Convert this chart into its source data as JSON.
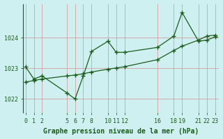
{
  "title": "Graphe pression niveau de la mer (hPa)",
  "bg_color": "#cff0f0",
  "line_color": "#1a5c1a",
  "grid_color_h": "#d4a0a0",
  "grid_color_v": "#d4a0a0",
  "x_ticks": [
    0,
    1,
    2,
    5,
    6,
    7,
    8,
    10,
    11,
    12,
    16,
    18,
    19,
    21,
    22,
    23
  ],
  "x_tick_labels": [
    "0",
    "1",
    "2",
    "5",
    "6",
    "7",
    "8",
    "10",
    "11",
    "12",
    "16",
    "18",
    "19",
    "21",
    "22",
    "23"
  ],
  "y_ticks": [
    1022,
    1023,
    1024
  ],
  "ylim": [
    1021.55,
    1025.1
  ],
  "xlim": [
    -0.3,
    23.5
  ],
  "series1_x": [
    0,
    1,
    2,
    5,
    6,
    7,
    8,
    10,
    11,
    12,
    16,
    18,
    19,
    21,
    22,
    23
  ],
  "series1_y": [
    1023.05,
    1022.65,
    1022.75,
    1022.2,
    1022.0,
    1022.75,
    1023.55,
    1023.88,
    1023.52,
    1023.52,
    1023.68,
    1024.05,
    1024.82,
    1023.88,
    1023.92,
    1024.02
  ],
  "series2_x": [
    0,
    1,
    2,
    5,
    6,
    7,
    8,
    10,
    11,
    12,
    16,
    18,
    19,
    21,
    22,
    23
  ],
  "series2_y": [
    1022.55,
    1022.6,
    1022.65,
    1022.75,
    1022.78,
    1022.82,
    1022.88,
    1022.97,
    1023.01,
    1023.05,
    1023.28,
    1023.58,
    1023.72,
    1023.92,
    1024.05,
    1024.08
  ],
  "marker": "+",
  "markersize": 4,
  "linewidth": 0.9,
  "tick_fontsize": 6,
  "xlabel_fontsize": 7
}
